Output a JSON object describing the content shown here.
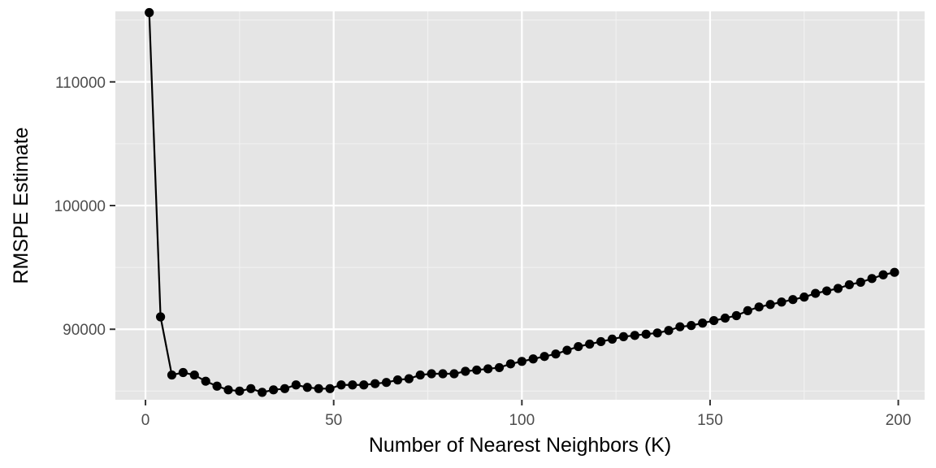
{
  "chart_data": {
    "type": "line",
    "title": "",
    "xlabel": "Number of Nearest Neighbors (K)",
    "ylabel": "RMSPE Estimate",
    "xlim": [
      -8,
      207
    ],
    "ylim": [
      84300,
      115700
    ],
    "x_ticks": [
      0,
      50,
      100,
      150,
      200
    ],
    "y_ticks": [
      90000,
      100000,
      110000
    ],
    "x_tick_labels": [
      "0",
      "50",
      "100",
      "150",
      "200"
    ],
    "y_tick_labels": [
      "90000",
      "100000",
      "110000"
    ],
    "grid": true,
    "legend": "none",
    "colors": {
      "panel_background": "#e5e5e5",
      "grid_major": "#ffffff",
      "grid_minor": "#f2f2f2",
      "line": "#000000",
      "point": "#000000",
      "tick_text": "#4d4d4d",
      "axis_title_text": "#000000"
    },
    "series": [
      {
        "x": [
          1,
          4,
          7,
          10,
          13,
          16,
          19,
          22,
          25,
          28,
          31,
          34,
          37,
          40,
          43,
          46,
          49,
          52,
          55,
          58,
          61,
          64,
          67,
          70,
          73,
          76,
          79,
          82,
          85,
          88,
          91,
          94,
          97,
          100,
          103,
          106,
          109,
          112,
          115,
          118,
          121,
          124,
          127,
          130,
          133,
          136,
          139,
          142,
          145,
          148,
          151,
          154,
          157,
          160,
          163,
          166,
          169,
          172,
          175,
          178,
          181,
          184,
          187,
          190,
          193,
          196,
          199
        ],
        "y": [
          115600,
          91000,
          86300,
          86500,
          86300,
          85800,
          85400,
          85100,
          85000,
          85200,
          84900,
          85100,
          85200,
          85500,
          85300,
          85200,
          85200,
          85500,
          85500,
          85500,
          85600,
          85700,
          85900,
          86000,
          86300,
          86400,
          86400,
          86400,
          86600,
          86700,
          86800,
          86900,
          87200,
          87400,
          87600,
          87800,
          88000,
          88300,
          88600,
          88800,
          89000,
          89200,
          89400,
          89500,
          89600,
          89700,
          89900,
          90200,
          90300,
          90500,
          90700,
          90900,
          91100,
          91500,
          91800,
          92000,
          92200,
          92400,
          92600,
          92900,
          93100,
          93300,
          93600,
          93800,
          94100,
          94400,
          94600
        ]
      }
    ]
  }
}
